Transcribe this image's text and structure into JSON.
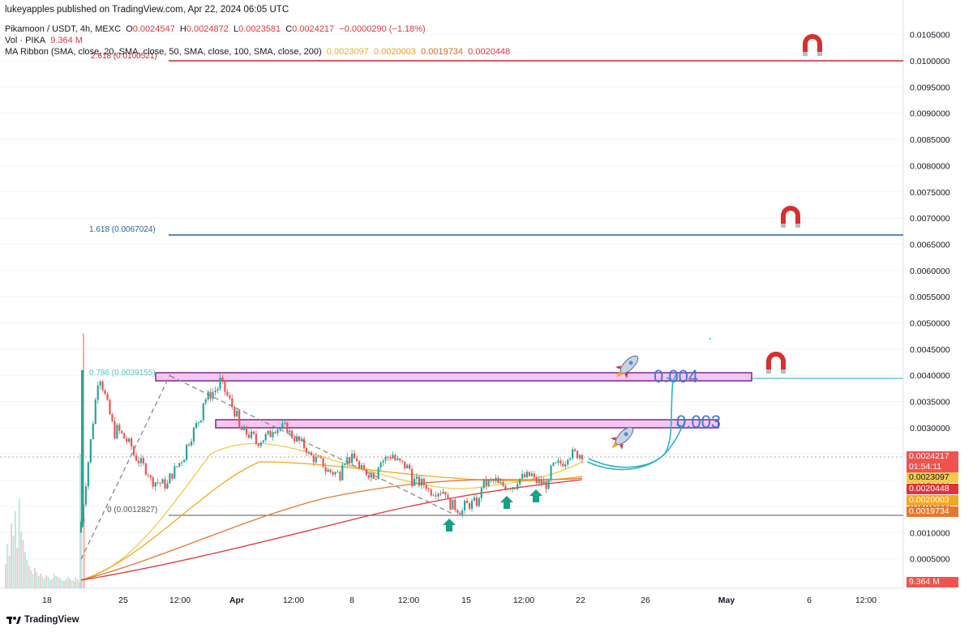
{
  "header": {
    "published": "lukeyapples published on TradingView.com, Apr 22, 2024 06:05 UTC",
    "symbol": "Pikamoon / USDT, 4h, MEXC",
    "o_label": "O",
    "o_val": "0.0024547",
    "h_label": "H",
    "h_val": "0.0024872",
    "l_label": "L",
    "l_val": "0.0023581",
    "c_label": "C",
    "c_val": "0.0024217",
    "change": "−0.0000290 (−1.18%)",
    "vol_label": "Vol · PIKA",
    "vol_val": "9.364 M",
    "ma_label": "MA Ribbon (SMA, close, 20, SMA, close, 50, SMA, close, 100, SMA, close, 200)",
    "ma_values": [
      "0.0023097",
      "0.0020003",
      "0.0019734",
      "0.0020448"
    ]
  },
  "badges": {
    "last_price": "0.0024217",
    "countdown": "01:54:11",
    "ma20": "0.0023097",
    "ma200": "0.0020448",
    "ma50": "0.0020003",
    "ma100": "0.0019734",
    "volume": "9.364 M"
  },
  "colors": {
    "up": "#26a69a",
    "down": "#ef5350",
    "ma20": "#f2c94c",
    "ma50": "#f5a623",
    "ma100": "#e8772e",
    "ma200": "#e0353b",
    "fib_top": "#c0282d",
    "fib_1618": "#2a5fa0",
    "fib_0786": "#4ec3c8",
    "fib_0": "#555555",
    "zone_fill": "#f5c6f0",
    "zone_border": "#7b2a8b",
    "annot": "#3c78d8"
  },
  "annotations": {
    "target_high": "0.004",
    "target_low": "0.003",
    "icons": [
      "magnet-icon",
      "rocket-icon",
      "up-arrow-icon"
    ]
  },
  "footer": {
    "brand": "TradingView"
  },
  "chart_data": {
    "type": "candlestick",
    "title": "Pikamoon / USDT, 4h, MEXC",
    "y_axis": {
      "scale": "linear",
      "position": "right",
      "ticks": [
        "0.0105000",
        "0.0100000",
        "0.0095000",
        "0.0090000",
        "0.0085000",
        "0.0080000",
        "0.0075000",
        "0.0070000",
        "0.0065000",
        "0.0060000",
        "0.0055000",
        "0.0050000",
        "0.0045000",
        "0.0040000",
        "0.0035000",
        "0.0030000",
        "0.0025000",
        "0.0020000",
        "0.0015000",
        "0.0010000",
        "0.0005000"
      ],
      "tick_values": [
        0.0105,
        0.01,
        0.0095,
        0.009,
        0.0085,
        0.008,
        0.0075,
        0.007,
        0.0065,
        0.006,
        0.0055,
        0.005,
        0.0045,
        0.004,
        0.0035,
        0.003,
        0.0025,
        0.002,
        0.0015,
        0.001,
        0.0005
      ]
    },
    "x_axis": {
      "labels": [
        "18",
        "25",
        "12:00",
        "Apr",
        "12:00",
        "8",
        "12:00",
        "15",
        "12:00",
        "22",
        "26",
        "May",
        "6",
        "12:00"
      ]
    },
    "fib_levels": [
      {
        "ratio": "2.618",
        "value": 0.0100521,
        "label": "2.618 (0.0100521)"
      },
      {
        "ratio": "1.618",
        "value": 0.0067024,
        "label": "1.618 (0.0067024)"
      },
      {
        "ratio": "0.786",
        "value": 0.0039155,
        "label": "0.786 (0.0039155)"
      },
      {
        "ratio": "0",
        "value": 0.0012827,
        "label": "0 (0.0012827)"
      }
    ],
    "zones": [
      {
        "low": 0.0039,
        "high": 0.00405
      },
      {
        "low": 0.00297,
        "high": 0.00311
      }
    ],
    "price_path": [
      [
        0.001,
        0.0012
      ],
      [
        0.004,
        0.0041
      ],
      [
        0.0028,
        0.003
      ],
      [
        0.0026,
        0.0025
      ],
      [
        0.0021,
        0.002
      ],
      [
        0.0019,
        0.002
      ],
      [
        0.0025,
        0.0026
      ],
      [
        0.0033,
        0.0035
      ],
      [
        0.0038,
        0.0039
      ],
      [
        0.0032,
        0.003
      ],
      [
        0.0028,
        0.0027
      ],
      [
        0.0029,
        0.003
      ],
      [
        0.003,
        0.0029
      ],
      [
        0.0026,
        0.0025
      ],
      [
        0.0023,
        0.0022
      ],
      [
        0.0021,
        0.0024
      ],
      [
        0.0024,
        0.0022
      ],
      [
        0.0021,
        0.0023
      ],
      [
        0.0025,
        0.0024
      ],
      [
        0.0022,
        0.002
      ],
      [
        0.0019,
        0.0018
      ],
      [
        0.0018,
        0.0016
      ],
      [
        0.0014,
        0.0015
      ],
      [
        0.0016,
        0.0019
      ],
      [
        0.002,
        0.0019
      ],
      [
        0.0019,
        0.002
      ],
      [
        0.0021,
        0.002
      ],
      [
        0.0019,
        0.0022
      ],
      [
        0.0024,
        0.0025
      ],
      [
        0.0025,
        0.0024
      ]
    ]
  }
}
